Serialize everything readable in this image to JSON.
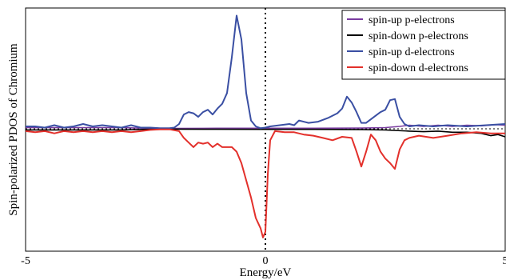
{
  "chart_data": {
    "type": "line",
    "title": "",
    "xlabel": "Energy/eV",
    "ylabel": "Spin-polarized PDOS of Chromium",
    "xlim": [
      -5,
      5
    ],
    "ylim": [
      -1,
      1
    ],
    "x_ticks": [
      -5,
      0,
      5
    ],
    "x_tick_labels": [
      "-5",
      "0",
      "5"
    ],
    "y_tick_labels": [],
    "grid": false,
    "legend_position": "top-right",
    "reference_lines": [
      {
        "axis": "x",
        "value": 0,
        "style": "dotted"
      },
      {
        "axis": "y",
        "value": 0,
        "style": "dotted"
      }
    ],
    "series": [
      {
        "name": "spin-up p-electrons",
        "color": "#7a3ca0",
        "points": [
          [
            -5,
            0.01
          ],
          [
            -4,
            0.01
          ],
          [
            -3,
            0.01
          ],
          [
            -2.5,
            0.005
          ],
          [
            -2,
            0.003
          ],
          [
            -1,
            0.005
          ],
          [
            0,
            0.005
          ],
          [
            1,
            0.005
          ],
          [
            2,
            0.006
          ],
          [
            2.5,
            0.01
          ],
          [
            2.8,
            0.02
          ],
          [
            3,
            0.03
          ],
          [
            3.3,
            0.02
          ],
          [
            3.6,
            0.03
          ],
          [
            3.9,
            0.02
          ],
          [
            4.2,
            0.03
          ],
          [
            4.5,
            0.025
          ],
          [
            4.8,
            0.035
          ],
          [
            5,
            0.03
          ]
        ]
      },
      {
        "name": "spin-down p-electrons",
        "color": "#000000",
        "points": [
          [
            -5,
            -0.01
          ],
          [
            -4,
            -0.01
          ],
          [
            -3,
            -0.01
          ],
          [
            -2.5,
            -0.005
          ],
          [
            -2,
            -0.003
          ],
          [
            -1,
            -0.004
          ],
          [
            0,
            -0.005
          ],
          [
            1,
            -0.005
          ],
          [
            2,
            -0.006
          ],
          [
            2.5,
            -0.01
          ],
          [
            3,
            -0.02
          ],
          [
            3.3,
            -0.025
          ],
          [
            3.6,
            -0.02
          ],
          [
            3.9,
            -0.03
          ],
          [
            4.2,
            -0.03
          ],
          [
            4.5,
            -0.04
          ],
          [
            4.7,
            -0.06
          ],
          [
            4.85,
            -0.05
          ],
          [
            5,
            -0.07
          ]
        ]
      },
      {
        "name": "spin-up d-electrons",
        "color": "#3a4fa3",
        "points": [
          [
            -5,
            0.02
          ],
          [
            -4.8,
            0.02
          ],
          [
            -4.6,
            0.01
          ],
          [
            -4.4,
            0.03
          ],
          [
            -4.2,
            0.01
          ],
          [
            -4,
            0.02
          ],
          [
            -3.8,
            0.04
          ],
          [
            -3.6,
            0.02
          ],
          [
            -3.4,
            0.03
          ],
          [
            -3.2,
            0.02
          ],
          [
            -3,
            0.01
          ],
          [
            -2.8,
            0.03
          ],
          [
            -2.6,
            0.01
          ],
          [
            -2.4,
            0.01
          ],
          [
            -2.2,
            0.005
          ],
          [
            -2,
            0.005
          ],
          [
            -1.9,
            0.01
          ],
          [
            -1.8,
            0.04
          ],
          [
            -1.7,
            0.12
          ],
          [
            -1.6,
            0.14
          ],
          [
            -1.5,
            0.13
          ],
          [
            -1.4,
            0.1
          ],
          [
            -1.3,
            0.14
          ],
          [
            -1.2,
            0.16
          ],
          [
            -1.1,
            0.12
          ],
          [
            -1,
            0.17
          ],
          [
            -0.9,
            0.21
          ],
          [
            -0.8,
            0.3
          ],
          [
            -0.7,
            0.6
          ],
          [
            -0.6,
            0.95
          ],
          [
            -0.5,
            0.75
          ],
          [
            -0.4,
            0.3
          ],
          [
            -0.3,
            0.07
          ],
          [
            -0.2,
            0.02
          ],
          [
            -0.1,
            0.005
          ],
          [
            0,
            0.01
          ],
          [
            0.1,
            0.02
          ],
          [
            0.3,
            0.03
          ],
          [
            0.5,
            0.04
          ],
          [
            0.6,
            0.03
          ],
          [
            0.7,
            0.07
          ],
          [
            0.9,
            0.05
          ],
          [
            1.1,
            0.06
          ],
          [
            1.3,
            0.09
          ],
          [
            1.5,
            0.13
          ],
          [
            1.6,
            0.17
          ],
          [
            1.7,
            0.27
          ],
          [
            1.8,
            0.22
          ],
          [
            1.9,
            0.14
          ],
          [
            2,
            0.05
          ],
          [
            2.1,
            0.05
          ],
          [
            2.2,
            0.08
          ],
          [
            2.3,
            0.11
          ],
          [
            2.4,
            0.14
          ],
          [
            2.5,
            0.16
          ],
          [
            2.6,
            0.24
          ],
          [
            2.7,
            0.25
          ],
          [
            2.8,
            0.1
          ],
          [
            2.9,
            0.04
          ],
          [
            3,
            0.02
          ],
          [
            3.2,
            0.03
          ],
          [
            3.5,
            0.02
          ],
          [
            3.8,
            0.03
          ],
          [
            4.2,
            0.02
          ],
          [
            4.6,
            0.03
          ],
          [
            5,
            0.04
          ]
        ]
      },
      {
        "name": "spin-down d-electrons",
        "color": "#e3302b",
        "points": [
          [
            -5,
            -0.02
          ],
          [
            -4.8,
            -0.03
          ],
          [
            -4.6,
            -0.02
          ],
          [
            -4.4,
            -0.04
          ],
          [
            -4.2,
            -0.02
          ],
          [
            -4,
            -0.03
          ],
          [
            -3.8,
            -0.02
          ],
          [
            -3.6,
            -0.03
          ],
          [
            -3.4,
            -0.02
          ],
          [
            -3.2,
            -0.03
          ],
          [
            -3,
            -0.02
          ],
          [
            -2.8,
            -0.03
          ],
          [
            -2.6,
            -0.02
          ],
          [
            -2.4,
            -0.01
          ],
          [
            -2.2,
            -0.005
          ],
          [
            -2,
            -0.005
          ],
          [
            -1.8,
            -0.02
          ],
          [
            -1.7,
            -0.08
          ],
          [
            -1.6,
            -0.12
          ],
          [
            -1.5,
            -0.16
          ],
          [
            -1.4,
            -0.12
          ],
          [
            -1.3,
            -0.13
          ],
          [
            -1.2,
            -0.12
          ],
          [
            -1.1,
            -0.16
          ],
          [
            -1,
            -0.13
          ],
          [
            -0.9,
            -0.16
          ],
          [
            -0.8,
            -0.16
          ],
          [
            -0.7,
            -0.16
          ],
          [
            -0.6,
            -0.2
          ],
          [
            -0.5,
            -0.3
          ],
          [
            -0.4,
            -0.45
          ],
          [
            -0.3,
            -0.6
          ],
          [
            -0.2,
            -0.78
          ],
          [
            -0.1,
            -0.87
          ],
          [
            -0.05,
            -0.95
          ],
          [
            0,
            -0.9
          ],
          [
            0.05,
            -0.4
          ],
          [
            0.1,
            -0.1
          ],
          [
            0.2,
            -0.02
          ],
          [
            0.4,
            -0.03
          ],
          [
            0.6,
            -0.03
          ],
          [
            0.8,
            -0.05
          ],
          [
            1,
            -0.06
          ],
          [
            1.2,
            -0.08
          ],
          [
            1.4,
            -0.1
          ],
          [
            1.6,
            -0.07
          ],
          [
            1.8,
            -0.08
          ],
          [
            1.9,
            -0.2
          ],
          [
            2,
            -0.33
          ],
          [
            2.1,
            -0.2
          ],
          [
            2.2,
            -0.05
          ],
          [
            2.3,
            -0.1
          ],
          [
            2.4,
            -0.2
          ],
          [
            2.5,
            -0.26
          ],
          [
            2.6,
            -0.3
          ],
          [
            2.7,
            -0.35
          ],
          [
            2.8,
            -0.18
          ],
          [
            2.9,
            -0.1
          ],
          [
            3,
            -0.08
          ],
          [
            3.2,
            -0.06
          ],
          [
            3.5,
            -0.08
          ],
          [
            3.8,
            -0.06
          ],
          [
            4.1,
            -0.04
          ],
          [
            4.4,
            -0.03
          ],
          [
            4.7,
            -0.04
          ],
          [
            5,
            -0.04
          ]
        ]
      }
    ]
  }
}
